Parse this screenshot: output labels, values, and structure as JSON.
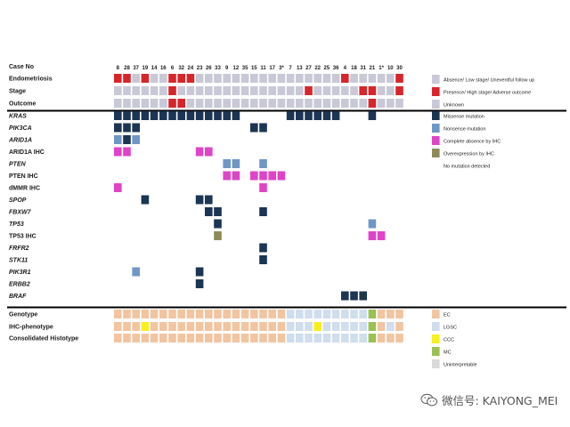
{
  "chart_data": {
    "type": "heatmap",
    "title": "",
    "case_header": "Case No",
    "cases": [
      "8",
      "28",
      "37",
      "19",
      "14",
      "16",
      "6",
      "32",
      "24",
      "23",
      "26",
      "33",
      "9",
      "12",
      "35",
      "15",
      "11",
      "17",
      "3*",
      "7",
      "13",
      "27",
      "22",
      "25",
      "36",
      "4",
      "18",
      "31",
      "21",
      "1*",
      "10",
      "30"
    ],
    "colors": {
      "absence": "#c8c8d6",
      "presence": "#d7262b",
      "missense": "#1c3553",
      "nonsense": "#6f97c6",
      "complete_absence_ihc": "#df44c6",
      "overexpression_ihc": "#8e8a58",
      "EC": "#f1c5a1",
      "LGSC": "#cfdded",
      "CCC": "#f7ef1e",
      "MC": "#9ac152",
      "uninterpretable": "#d9d9d9"
    },
    "clinical_rows": [
      {
        "label": "Endometriosis",
        "cells": [
          "presence",
          "presence",
          "absence",
          "presence",
          "absence",
          "absence",
          "presence",
          "presence",
          "presence",
          "absence",
          "absence",
          "absence",
          "absence",
          "absence",
          "absence",
          "absence",
          "absence",
          "absence",
          "absence",
          "absence",
          "absence",
          "absence",
          "absence",
          "absence",
          "absence",
          "presence",
          "absence",
          "absence",
          "absence",
          "absence",
          "absence",
          "presence"
        ]
      },
      {
        "label": "Stage",
        "cells": [
          "absence",
          "absence",
          "absence",
          "absence",
          "absence",
          "absence",
          "presence",
          "absence",
          "absence",
          "absence",
          "absence",
          "absence",
          "absence",
          "absence",
          "absence",
          "absence",
          "absence",
          "absence",
          "absence",
          "absence",
          "absence",
          "presence",
          "absence",
          "absence",
          "absence",
          "absence",
          "absence",
          "presence",
          "presence",
          "absence",
          "absence",
          "presence"
        ]
      },
      {
        "label": "Outcome",
        "cells": [
          "absence",
          "absence",
          "absence",
          "absence",
          "absence",
          "absence",
          "presence",
          "presence",
          "absence",
          "absence",
          "absence",
          "absence",
          "absence",
          "absence",
          "absence",
          "absence",
          "absence",
          "absence",
          "absence",
          "absence",
          "absence",
          "absence",
          "absence",
          "absence",
          "absence",
          "absence",
          "absence",
          "absence",
          "presence",
          "absence",
          "absence",
          "absence"
        ]
      }
    ],
    "gene_rows": [
      {
        "label": "KRAS",
        "italic": true,
        "cells": [
          "missense",
          "missense",
          "missense",
          "missense",
          "missense",
          "missense",
          "missense",
          "missense",
          "missense",
          "missense",
          "missense",
          "missense",
          "missense",
          "missense",
          null,
          null,
          null,
          null,
          null,
          "missense",
          "missense",
          "missense",
          "missense",
          "missense",
          "missense",
          null,
          null,
          null,
          "missense",
          null,
          null,
          null
        ]
      },
      {
        "label": "PIK3CA",
        "italic": true,
        "cells": [
          "missense",
          "missense",
          "missense",
          null,
          null,
          null,
          null,
          null,
          null,
          null,
          null,
          null,
          null,
          null,
          null,
          "missense",
          "missense",
          null,
          null,
          null,
          null,
          null,
          null,
          null,
          null,
          null,
          null,
          null,
          null,
          null,
          null,
          null
        ]
      },
      {
        "label": "ARID1A",
        "italic": true,
        "cells": [
          "nonsense",
          "missense",
          "nonsense",
          null,
          null,
          null,
          null,
          null,
          null,
          null,
          null,
          null,
          null,
          null,
          null,
          null,
          null,
          null,
          null,
          null,
          null,
          null,
          null,
          null,
          null,
          null,
          null,
          null,
          null,
          null,
          null,
          null
        ]
      },
      {
        "label": "ARID1A IHC",
        "italic": false,
        "cells": [
          "complete_absence_ihc",
          "complete_absence_ihc",
          null,
          null,
          null,
          null,
          null,
          null,
          null,
          "complete_absence_ihc",
          "complete_absence_ihc",
          null,
          null,
          null,
          null,
          null,
          null,
          null,
          null,
          null,
          null,
          null,
          null,
          null,
          null,
          null,
          null,
          null,
          null,
          null,
          null,
          null
        ]
      },
      {
        "label": "PTEN",
        "italic": true,
        "cells": [
          null,
          null,
          null,
          null,
          null,
          null,
          null,
          null,
          null,
          null,
          null,
          null,
          "nonsense",
          "nonsense",
          null,
          null,
          "nonsense",
          null,
          null,
          null,
          null,
          null,
          null,
          null,
          null,
          null,
          null,
          null,
          null,
          null,
          null,
          null
        ]
      },
      {
        "label": "PTEN  IHC",
        "italic": false,
        "cells": [
          null,
          null,
          null,
          null,
          null,
          null,
          null,
          null,
          null,
          null,
          null,
          null,
          "complete_absence_ihc",
          "complete_absence_ihc",
          null,
          "complete_absence_ihc",
          "complete_absence_ihc",
          "complete_absence_ihc",
          "complete_absence_ihc",
          null,
          null,
          null,
          null,
          null,
          null,
          null,
          null,
          null,
          null,
          null,
          null,
          null
        ]
      },
      {
        "label": "dMMR IHC",
        "italic": false,
        "cells": [
          "complete_absence_ihc",
          null,
          null,
          null,
          null,
          null,
          null,
          null,
          null,
          null,
          null,
          null,
          null,
          null,
          null,
          null,
          "complete_absence_ihc",
          null,
          null,
          null,
          null,
          null,
          null,
          null,
          null,
          null,
          null,
          null,
          null,
          null,
          null,
          null
        ]
      },
      {
        "label": "SPOP",
        "italic": true,
        "cells": [
          null,
          null,
          null,
          "missense",
          null,
          null,
          null,
          null,
          null,
          "missense",
          "missense",
          null,
          null,
          null,
          null,
          null,
          null,
          null,
          null,
          null,
          null,
          null,
          null,
          null,
          null,
          null,
          null,
          null,
          null,
          null,
          null,
          null
        ]
      },
      {
        "label": "FBXW7",
        "italic": true,
        "cells": [
          null,
          null,
          null,
          null,
          null,
          null,
          null,
          null,
          null,
          null,
          "missense",
          "missense",
          null,
          null,
          null,
          null,
          "missense",
          null,
          null,
          null,
          null,
          null,
          null,
          null,
          null,
          null,
          null,
          null,
          null,
          null,
          null,
          null
        ]
      },
      {
        "label": "TP53",
        "italic": true,
        "cells": [
          null,
          null,
          null,
          null,
          null,
          null,
          null,
          null,
          null,
          null,
          null,
          "missense",
          null,
          null,
          null,
          null,
          null,
          null,
          null,
          null,
          null,
          null,
          null,
          null,
          null,
          null,
          null,
          null,
          "nonsense",
          null,
          null,
          null
        ]
      },
      {
        "label": "TP53 IHC",
        "italic": false,
        "cells": [
          null,
          null,
          null,
          null,
          null,
          null,
          null,
          null,
          null,
          null,
          null,
          "overexpression_ihc",
          null,
          null,
          null,
          null,
          null,
          null,
          null,
          null,
          null,
          null,
          null,
          null,
          null,
          null,
          null,
          null,
          "complete_absence_ihc",
          "complete_absence_ihc",
          null,
          null
        ]
      },
      {
        "label": "FRFR2",
        "italic": true,
        "cells": [
          null,
          null,
          null,
          null,
          null,
          null,
          null,
          null,
          null,
          null,
          null,
          null,
          null,
          null,
          null,
          null,
          "missense",
          null,
          null,
          null,
          null,
          null,
          null,
          null,
          null,
          null,
          null,
          null,
          null,
          null,
          null,
          null
        ]
      },
      {
        "label": "STK11",
        "italic": true,
        "cells": [
          null,
          null,
          null,
          null,
          null,
          null,
          null,
          null,
          null,
          null,
          null,
          null,
          null,
          null,
          null,
          null,
          "missense",
          null,
          null,
          null,
          null,
          null,
          null,
          null,
          null,
          null,
          null,
          null,
          null,
          null,
          null,
          null
        ]
      },
      {
        "label": "PIK3R1",
        "italic": true,
        "cells": [
          null,
          null,
          "nonsense",
          null,
          null,
          null,
          null,
          null,
          null,
          "missense",
          null,
          null,
          null,
          null,
          null,
          null,
          null,
          null,
          null,
          null,
          null,
          null,
          null,
          null,
          null,
          null,
          null,
          null,
          null,
          null,
          null,
          null
        ]
      },
      {
        "label": "ERBB2",
        "italic": true,
        "cells": [
          null,
          null,
          null,
          null,
          null,
          null,
          null,
          null,
          null,
          "missense",
          null,
          null,
          null,
          null,
          null,
          null,
          null,
          null,
          null,
          null,
          null,
          null,
          null,
          null,
          null,
          null,
          null,
          null,
          null,
          null,
          null,
          null
        ]
      },
      {
        "label": "BRAF",
        "italic": true,
        "cells": [
          null,
          null,
          null,
          null,
          null,
          null,
          null,
          null,
          null,
          null,
          null,
          null,
          null,
          null,
          null,
          null,
          null,
          null,
          null,
          null,
          null,
          null,
          null,
          null,
          null,
          "missense",
          "missense",
          "missense",
          null,
          null,
          null,
          null
        ]
      }
    ],
    "histotype_rows": [
      {
        "label": "Genotype",
        "cells": [
          "EC",
          "EC",
          "EC",
          "EC",
          "EC",
          "EC",
          "EC",
          "EC",
          "EC",
          "EC",
          "EC",
          "EC",
          "EC",
          "EC",
          "EC",
          "EC",
          "EC",
          "EC",
          "EC",
          "LGSC",
          "LGSC",
          "LGSC",
          "LGSC",
          "LGSC",
          "LGSC",
          "LGSC",
          "LGSC",
          "LGSC",
          "MC",
          "EC",
          "EC",
          "EC"
        ]
      },
      {
        "label": "IHC-phenotype",
        "cells": [
          "EC",
          "EC",
          "EC",
          "CCC",
          "EC",
          "EC",
          "EC",
          "EC",
          "EC",
          "EC",
          "EC",
          "EC",
          "EC",
          "EC",
          "EC",
          "EC",
          "EC",
          "EC",
          "EC",
          "LGSC",
          "LGSC",
          "LGSC",
          "CCC",
          "LGSC",
          "LGSC",
          "LGSC",
          "LGSC",
          "LGSC",
          "MC",
          "EC",
          "LGSC",
          "EC"
        ]
      },
      {
        "label": "Consolidated Histotype",
        "cells": [
          "EC",
          "EC",
          "EC",
          "EC",
          "EC",
          "EC",
          "EC",
          "EC",
          "EC",
          "EC",
          "EC",
          "EC",
          "EC",
          "EC",
          "EC",
          "EC",
          "EC",
          "EC",
          "EC",
          "LGSC",
          "LGSC",
          "LGSC",
          "LGSC",
          "LGSC",
          "LGSC",
          "LGSC",
          "LGSC",
          "LGSC",
          "MC",
          "EC",
          "EC",
          "EC"
        ]
      }
    ],
    "legends": {
      "clinical": [
        {
          "key": "absence",
          "label": "Absence/ Low stage/ Uneventful follow up"
        },
        {
          "key": "presence",
          "label": "Presence/ High stage/ Adverse outcome"
        },
        {
          "key": "absence",
          "label": "Unknown"
        }
      ],
      "gene": [
        {
          "key": "missense",
          "label": "Missense mutation"
        },
        {
          "key": "nonsense",
          "label": "Nonsense mutation"
        },
        {
          "key": "complete_absence_ihc",
          "label": "Complete absence by IHC"
        },
        {
          "key": "overexpression_ihc",
          "label": "Overexpression by IHC"
        },
        {
          "key": null,
          "label": "No mutation detected"
        }
      ],
      "histotype": [
        {
          "key": "EC",
          "label": "EC"
        },
        {
          "key": "LGSC",
          "label": "LGSC"
        },
        {
          "key": "CCC",
          "label": "CCC"
        },
        {
          "key": "MC",
          "label": "MC"
        },
        {
          "key": "uninterpretable",
          "label": "Uninterpretable"
        }
      ]
    }
  },
  "watermark": {
    "text": "微信号: KAIYONG_MEI",
    "icon": "wechat-icon"
  }
}
